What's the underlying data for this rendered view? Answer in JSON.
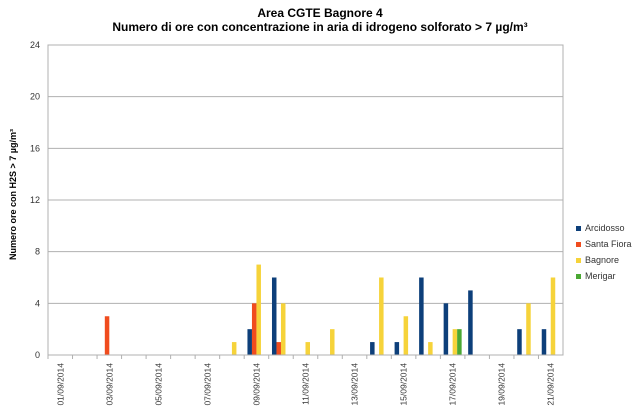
{
  "chart_data": {
    "type": "bar",
    "title": "Area CGTE Bagnore  4",
    "subtitle": "Numero di ore con concentrazione  in aria di idrogeno  solforato   > 7 µg/m³",
    "ylabel": "Numero ore con H2S > 7 µg/m³",
    "xlabel": "",
    "ylim": [
      0,
      24
    ],
    "yticks": [
      "0",
      "4",
      "8",
      "12",
      "16",
      "20",
      "24"
    ],
    "grid": true,
    "legend_position": "right",
    "categories": [
      "01/09/2014",
      "02/09/2014",
      "03/09/2014",
      "04/09/2014",
      "05/09/2014",
      "06/09/2014",
      "07/09/2014",
      "08/09/2014",
      "09/09/2014",
      "10/09/2014",
      "11/09/2014",
      "12/09/2014",
      "13/09/2014",
      "14/09/2014",
      "15/09/2014",
      "16/09/2014",
      "17/09/2014",
      "18/09/2014",
      "19/09/2014",
      "20/09/2014",
      "21/09/2014"
    ],
    "tick_labels": [
      "01/09/2014",
      "",
      "03/09/2014",
      "",
      "05/09/2014",
      "",
      "07/09/2014",
      "",
      "09/09/2014",
      "",
      "11/09/2014",
      "",
      "13/09/2014",
      "",
      "15/09/2014",
      "",
      "17/09/2014",
      "",
      "19/09/2014",
      "",
      "21/09/2014"
    ],
    "series": [
      {
        "name": "Arcidosso",
        "color": "#0d3f7a",
        "values": [
          0,
          0,
          0,
          0,
          0,
          0,
          0,
          0,
          2,
          6,
          0,
          0,
          0,
          1,
          1,
          6,
          4,
          5,
          0,
          2,
          2
        ]
      },
      {
        "name": "Santa Fiora",
        "color": "#f04c1e",
        "values": [
          0,
          0,
          3,
          0,
          0,
          0,
          0,
          0,
          4,
          1,
          0,
          0,
          0,
          0,
          0,
          0,
          0,
          0,
          0,
          0,
          0
        ]
      },
      {
        "name": "Bagnore",
        "color": "#f6d33a",
        "values": [
          0,
          0,
          0,
          0,
          0,
          0,
          0,
          1,
          7,
          4,
          1,
          2,
          0,
          6,
          3,
          1,
          2,
          0,
          0,
          4,
          6
        ]
      },
      {
        "name": "Merigar",
        "color": "#4aa832",
        "values": [
          0,
          0,
          0,
          0,
          0,
          0,
          0,
          0,
          0,
          0,
          0,
          0,
          0,
          0,
          0,
          0,
          2,
          0,
          0,
          0,
          0
        ]
      }
    ]
  }
}
